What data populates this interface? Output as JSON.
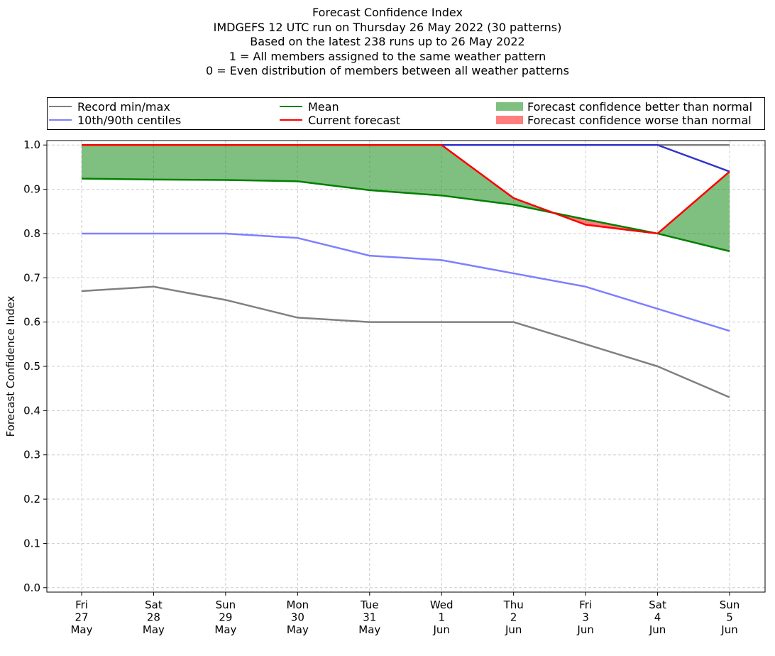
{
  "chart_data": {
    "type": "line",
    "title_lines": [
      "Forecast Confidence Index",
      "IMDGEFS 12 UTC run on Thursday 26 May 2022 (30 patterns)",
      "Based on the latest 238 runs up to 26 May 2022",
      "1 = All members assigned to the same weather pattern",
      "0 = Even distribution of members between all weather patterns"
    ],
    "ylabel": "Forecast Confidence Index",
    "xlabel": "",
    "ylim": [
      -0.01,
      1.01
    ],
    "yticks": [
      "0.0",
      "0.1",
      "0.2",
      "0.3",
      "0.4",
      "0.5",
      "0.6",
      "0.7",
      "0.8",
      "0.9",
      "1.0"
    ],
    "grid": true,
    "categories": [
      [
        "Fri",
        "27",
        "May"
      ],
      [
        "Sat",
        "28",
        "May"
      ],
      [
        "Sun",
        "29",
        "May"
      ],
      [
        "Mon",
        "30",
        "May"
      ],
      [
        "Tue",
        "31",
        "May"
      ],
      [
        "Wed",
        "1",
        "Jun"
      ],
      [
        "Thu",
        "2",
        "Jun"
      ],
      [
        "Fri",
        "3",
        "Jun"
      ],
      [
        "Sat",
        "4",
        "Jun"
      ],
      [
        "Sun",
        "5",
        "Jun"
      ]
    ],
    "series": [
      {
        "name": "Record min",
        "legend": "Record min/max",
        "color": "#808080",
        "values": [
          0.67,
          0.68,
          0.65,
          0.61,
          0.6,
          0.6,
          0.6,
          0.55,
          0.5,
          0.43
        ]
      },
      {
        "name": "Record max",
        "color": "#808080",
        "values": [
          1.0,
          1.0,
          1.0,
          1.0,
          1.0,
          1.0,
          1.0,
          1.0,
          1.0,
          1.0
        ]
      },
      {
        "name": "10th centile",
        "legend": "10th/90th centiles",
        "color": "#7f7fff",
        "values": [
          0.8,
          0.8,
          0.8,
          0.79,
          0.75,
          0.74,
          0.71,
          0.68,
          0.63,
          0.58
        ]
      },
      {
        "name": "90th centile",
        "color": "#3333cc",
        "values": [
          1.0,
          1.0,
          1.0,
          1.0,
          1.0,
          1.0,
          1.0,
          1.0,
          1.0,
          0.94
        ]
      },
      {
        "name": "Mean",
        "legend": "Mean",
        "color": "#008000",
        "values": [
          0.924,
          0.922,
          0.921,
          0.918,
          0.898,
          0.886,
          0.865,
          0.832,
          0.8,
          0.76
        ]
      },
      {
        "name": "Current forecast",
        "legend": "Current forecast",
        "color": "#ff0000",
        "values": [
          1.0,
          1.0,
          1.0,
          1.0,
          1.0,
          1.0,
          0.88,
          0.82,
          0.8,
          0.94
        ]
      }
    ],
    "fills": {
      "better": {
        "label": "Forecast confidence better than normal",
        "color": "#008000",
        "alpha": 0.5
      },
      "worse": {
        "label": "Forecast confidence worse than normal",
        "color": "#ff0000",
        "alpha": 0.5
      }
    }
  }
}
